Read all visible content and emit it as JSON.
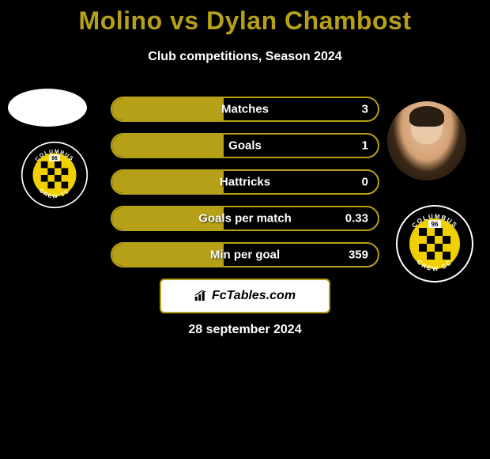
{
  "title": "Molino vs Dylan Chambost",
  "subtitle": "Club competitions, Season 2024",
  "date": "28 september 2024",
  "logo_text": "FcTables.com",
  "colors": {
    "accent": "#b5a017",
    "background": "#000000",
    "text": "#ffffff",
    "logo_bg": "#ffffff",
    "logo_text": "#000000"
  },
  "bars": {
    "fill_pct_common": 42,
    "items": [
      {
        "label": "Matches",
        "value_right": "3"
      },
      {
        "label": "Goals",
        "value_right": "1"
      },
      {
        "label": "Hattricks",
        "value_right": "0"
      },
      {
        "label": "Goals per match",
        "value_right": "0.33"
      },
      {
        "label": "Min per goal",
        "value_right": "359"
      }
    ]
  },
  "team_badge": {
    "outer_text": "COLUMBUS · CREW SC",
    "year": "96",
    "ring_bg": "#000000",
    "ring_text": "#ffffff",
    "inner_bg": "#f0d000",
    "check_color": "#000000"
  }
}
